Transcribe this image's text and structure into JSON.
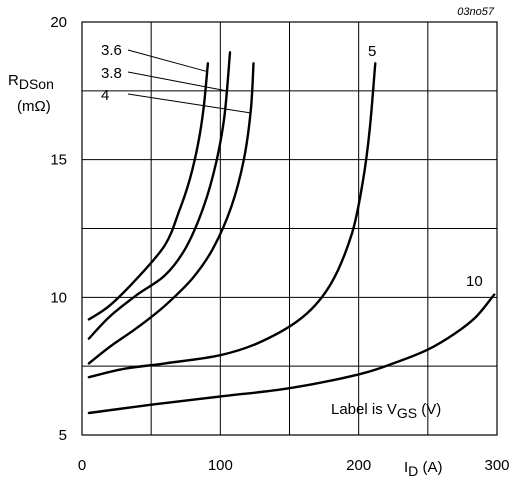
{
  "figure_id": "03no57",
  "chart_data": {
    "type": "line",
    "xlabel": {
      "main": "I",
      "sub": "D",
      "unit": " (A)"
    },
    "ylabel": {
      "main": "R",
      "sub": "DSon",
      "unit": "(mΩ)"
    },
    "xlim": [
      0,
      300
    ],
    "ylim": [
      5,
      20
    ],
    "x_ticks": [
      0,
      100,
      200,
      300
    ],
    "y_ticks": [
      5,
      10,
      15,
      20
    ],
    "x_gridlines": [
      50,
      100,
      150,
      200,
      250
    ],
    "y_gridlines": [
      7.5,
      10,
      12.5,
      15,
      17.5
    ],
    "grid": true,
    "note": {
      "prefix": "Label is V",
      "sub": "GS",
      "suffix": " (V)"
    },
    "series": [
      {
        "name": "3.6",
        "x": [
          5,
          20,
          40,
          60,
          70,
          78,
          84,
          88,
          91
        ],
        "y": [
          9.2,
          9.7,
          10.7,
          11.9,
          13.1,
          14.3,
          15.6,
          16.9,
          18.5
        ]
      },
      {
        "name": "3.8",
        "x": [
          5,
          20,
          40,
          60,
          75,
          88,
          97,
          103,
          107
        ],
        "y": [
          8.5,
          9.3,
          10.1,
          10.8,
          11.8,
          13.3,
          14.9,
          16.6,
          18.9
        ]
      },
      {
        "name": "4",
        "x": [
          5,
          20,
          40,
          60,
          80,
          95,
          108,
          117,
          122,
          124
        ],
        "y": [
          7.6,
          8.2,
          8.9,
          9.7,
          10.7,
          11.8,
          13.3,
          15.0,
          16.8,
          18.5
        ]
      },
      {
        "name": "5",
        "x": [
          5,
          30,
          60,
          100,
          130,
          160,
          180,
          195,
          203,
          208,
          212
        ],
        "y": [
          7.1,
          7.4,
          7.6,
          7.9,
          8.4,
          9.3,
          10.5,
          12.3,
          14.2,
          16.1,
          18.5
        ]
      },
      {
        "name": "10",
        "x": [
          5,
          50,
          100,
          150,
          200,
          225,
          250,
          270,
          285,
          298
        ],
        "y": [
          5.8,
          6.1,
          6.4,
          6.7,
          7.2,
          7.6,
          8.1,
          8.7,
          9.3,
          10.1
        ]
      }
    ],
    "curve_labels": [
      "3.6",
      "3.8",
      "4",
      "5",
      "10"
    ]
  }
}
